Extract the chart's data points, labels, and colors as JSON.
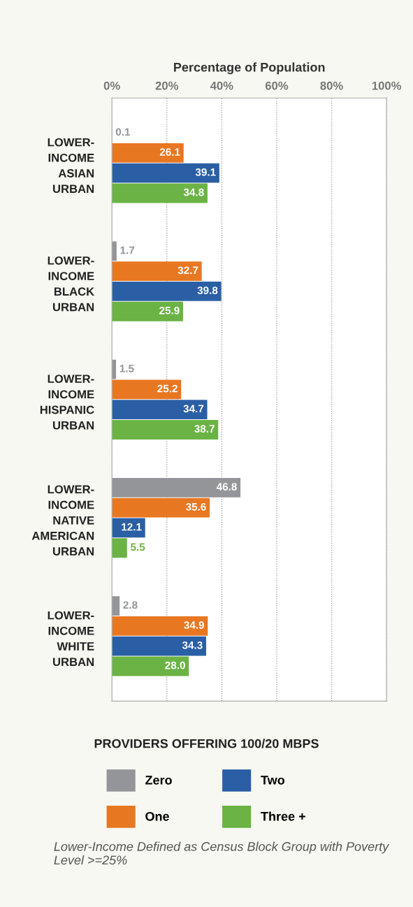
{
  "chart_data": {
    "type": "bar",
    "orientation": "horizontal",
    "xlabel": "Percentage of Population",
    "categories": [
      "LOWER-\nINCOME\nASIAN\nURBAN",
      "LOWER-\nINCOME\nBLACK\nURBAN",
      "LOWER-\nINCOME\nHISPANIC\nURBAN",
      "LOWER-\nINCOME\nNATIVE\nAMERICAN\nURBAN",
      "LOWER-\nINCOME\nWHITE\nURBAN"
    ],
    "series": [
      {
        "name": "Zero",
        "color": "#939598",
        "values": [
          0.1,
          1.7,
          1.5,
          46.8,
          2.8
        ],
        "value_labels": [
          "0.1",
          "1.7",
          "1.5",
          "46.8",
          "2.8"
        ]
      },
      {
        "name": "One",
        "color": "#e87722",
        "values": [
          26.1,
          32.7,
          25.2,
          35.6,
          34.9
        ],
        "value_labels": [
          "26.1",
          "32.7",
          "25.2",
          "35.6",
          "34.9"
        ]
      },
      {
        "name": "Two",
        "color": "#2a5fa5",
        "values": [
          39.1,
          39.8,
          34.7,
          12.1,
          34.3
        ],
        "value_labels": [
          "39.1",
          "39.8",
          "34.7",
          "12.1",
          "34.3"
        ]
      },
      {
        "name": "Three +",
        "color": "#6ab344",
        "values": [
          34.8,
          25.9,
          38.7,
          5.5,
          28.0
        ],
        "value_labels": [
          "34.8",
          "25.9",
          "38.7",
          "5.5",
          "28.0"
        ]
      }
    ],
    "xlim": [
      0,
      100
    ],
    "xticks": [
      {
        "value": 0,
        "label": "0%"
      },
      {
        "value": 20,
        "label": "20%"
      },
      {
        "value": 40,
        "label": "40%"
      },
      {
        "value": 60,
        "label": "60%"
      },
      {
        "value": 80,
        "label": "80%"
      },
      {
        "value": 100,
        "label": "100%"
      }
    ],
    "grid": "x",
    "legend": "bottom",
    "legend_title": "PROVIDERS OFFERING 100/20 MBPS",
    "annotations": [
      "Lower-Income Defined as Census Block Group with Poverty Level >=25%"
    ]
  }
}
